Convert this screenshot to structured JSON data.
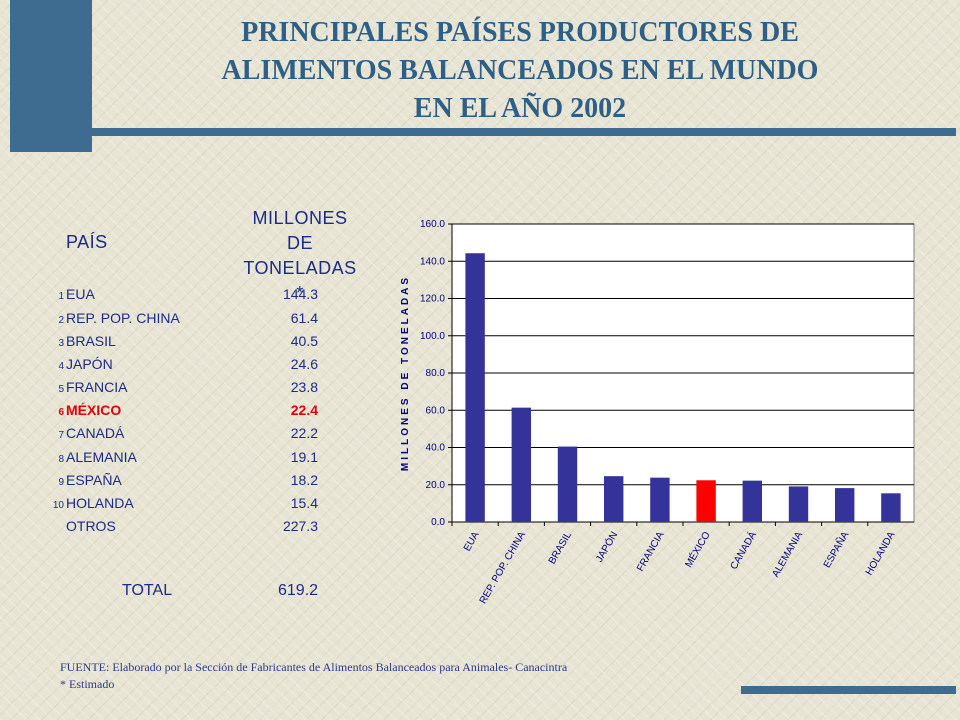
{
  "title": [
    "PRINCIPALES PAÍSES PRODUCTORES DE",
    "ALIMENTOS BALANCEADOS EN EL MUNDO",
    "EN EL AÑO 2002"
  ],
  "table": {
    "header_country": "PAÍS",
    "header_value": [
      "MILLONES DE",
      "TONELADAS *"
    ],
    "rows": [
      {
        "rank": "1",
        "name": "EUA",
        "value": "144.3"
      },
      {
        "rank": "2",
        "name": "REP. POP. CHINA",
        "value": "61.4"
      },
      {
        "rank": "3",
        "name": "BRASIL",
        "value": "40.5"
      },
      {
        "rank": "4",
        "name": "JAPÓN",
        "value": "24.6"
      },
      {
        "rank": "5",
        "name": "FRANCIA",
        "value": "23.8"
      },
      {
        "rank": "6",
        "name": "MÉXICO",
        "value": "22.4"
      },
      {
        "rank": "7",
        "name": "CANADÁ",
        "value": "22.2"
      },
      {
        "rank": "8",
        "name": "ALEMANIA",
        "value": "19.1"
      },
      {
        "rank": "9",
        "name": "ESPAÑA",
        "value": "18.2"
      },
      {
        "rank": "10",
        "name": "HOLANDA",
        "value": "15.4"
      },
      {
        "rank": "",
        "name": "OTROS",
        "value": "227.3"
      }
    ],
    "total_label": "TOTAL",
    "total_value": "619.2"
  },
  "chart_data": {
    "type": "bar",
    "categories": [
      "EUA",
      "REP. POP. CHINA",
      "BRASIL",
      "JAPÓN",
      "FRANCIA",
      "MÉXICO",
      "CANADÁ",
      "ALEMANIA",
      "ESPAÑA",
      "HOLANDA"
    ],
    "values": [
      144.3,
      61.4,
      40.5,
      24.6,
      23.8,
      22.4,
      22.2,
      19.1,
      18.2,
      15.4
    ],
    "ylabel": "MILLONES DE TONELADAS",
    "ylim": [
      0,
      160
    ],
    "yticks": [
      "0.0",
      "20.0",
      "40.0",
      "60.0",
      "80.0",
      "100.0",
      "120.0",
      "140.0",
      "160.0"
    ],
    "grid": true,
    "bar_color": "#333399",
    "highlight_color": "#ff0000",
    "highlight_category": "MÉXICO"
  },
  "source": [
    "FUENTE: Elaborado por la Sección de Fabricantes de Alimentos Balanceados para Animales- Canacintra",
    "* Estimado"
  ]
}
